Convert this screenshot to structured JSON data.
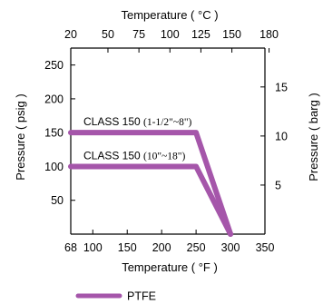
{
  "chart_data": {
    "type": "line",
    "top_axis": {
      "label": "Temperature ( °C )",
      "ticks": [
        20,
        50,
        75,
        100,
        125,
        150,
        180
      ]
    },
    "bottom_axis": {
      "label": "Temperature ( °F )",
      "ticks": [
        68,
        100,
        150,
        200,
        250,
        300,
        350
      ],
      "range": [
        68,
        350
      ]
    },
    "left_axis": {
      "label": "Pressure ( psig )",
      "ticks": [
        50,
        100,
        150,
        200,
        250
      ],
      "range": [
        0,
        275
      ]
    },
    "right_axis": {
      "label": "Pressure ( barg )",
      "ticks": [
        5,
        10,
        15
      ],
      "range": [
        0,
        18.96
      ]
    },
    "series": [
      {
        "name": "PTFE",
        "x": [
          68,
          250,
          300
        ],
        "y": [
          150,
          150,
          0
        ]
      },
      {
        "name": "PTFE",
        "x": [
          68,
          250,
          300
        ],
        "y": [
          100,
          100,
          0
        ]
      }
    ],
    "annotations": [
      {
        "text_sans": "CLASS 150 ",
        "text_serif": "(1-1/2\"~8\")",
        "x": 68,
        "y": 150
      },
      {
        "text_sans": "CLASS 150 ",
        "text_serif": "(10\"~18\")",
        "x": 68,
        "y": 100
      }
    ],
    "legend": {
      "label": "PTFE",
      "position": "bottom-left"
    },
    "line_color": "#a556aa",
    "grid": false
  }
}
